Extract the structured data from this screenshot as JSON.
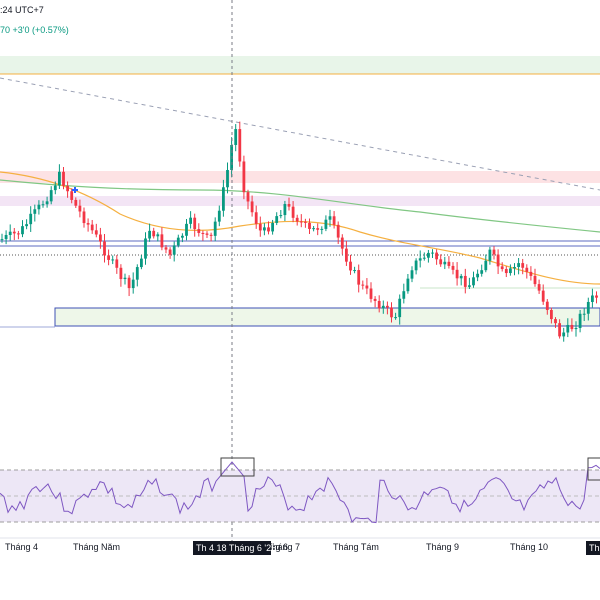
{
  "header": {
    "time_text": ":24 UTC+7",
    "change_text": "70  +3'0 (+0.57%)"
  },
  "time_axis": {
    "labels": [
      "Tháng 4",
      "Tháng Năm",
      "Tháng 6",
      "Tháng 7",
      "Tháng Tám",
      "Tháng 9",
      "Tháng 10"
    ],
    "crosshair_label": "Th 4 18 Tháng 6 '25",
    "right_edge_label": "Th"
  },
  "colors": {
    "up": "#089981",
    "down": "#f23645",
    "ma_slow": "#81c784",
    "ma_fast": "#f5b041",
    "trendline": "#9aa0b4",
    "rsi_line": "#7e57c2",
    "rsi_band": "#ede7f6",
    "zone_green": "#e8f5e9",
    "zone_red": "#fde2e4",
    "zone_border": "#3f51b5"
  }
}
